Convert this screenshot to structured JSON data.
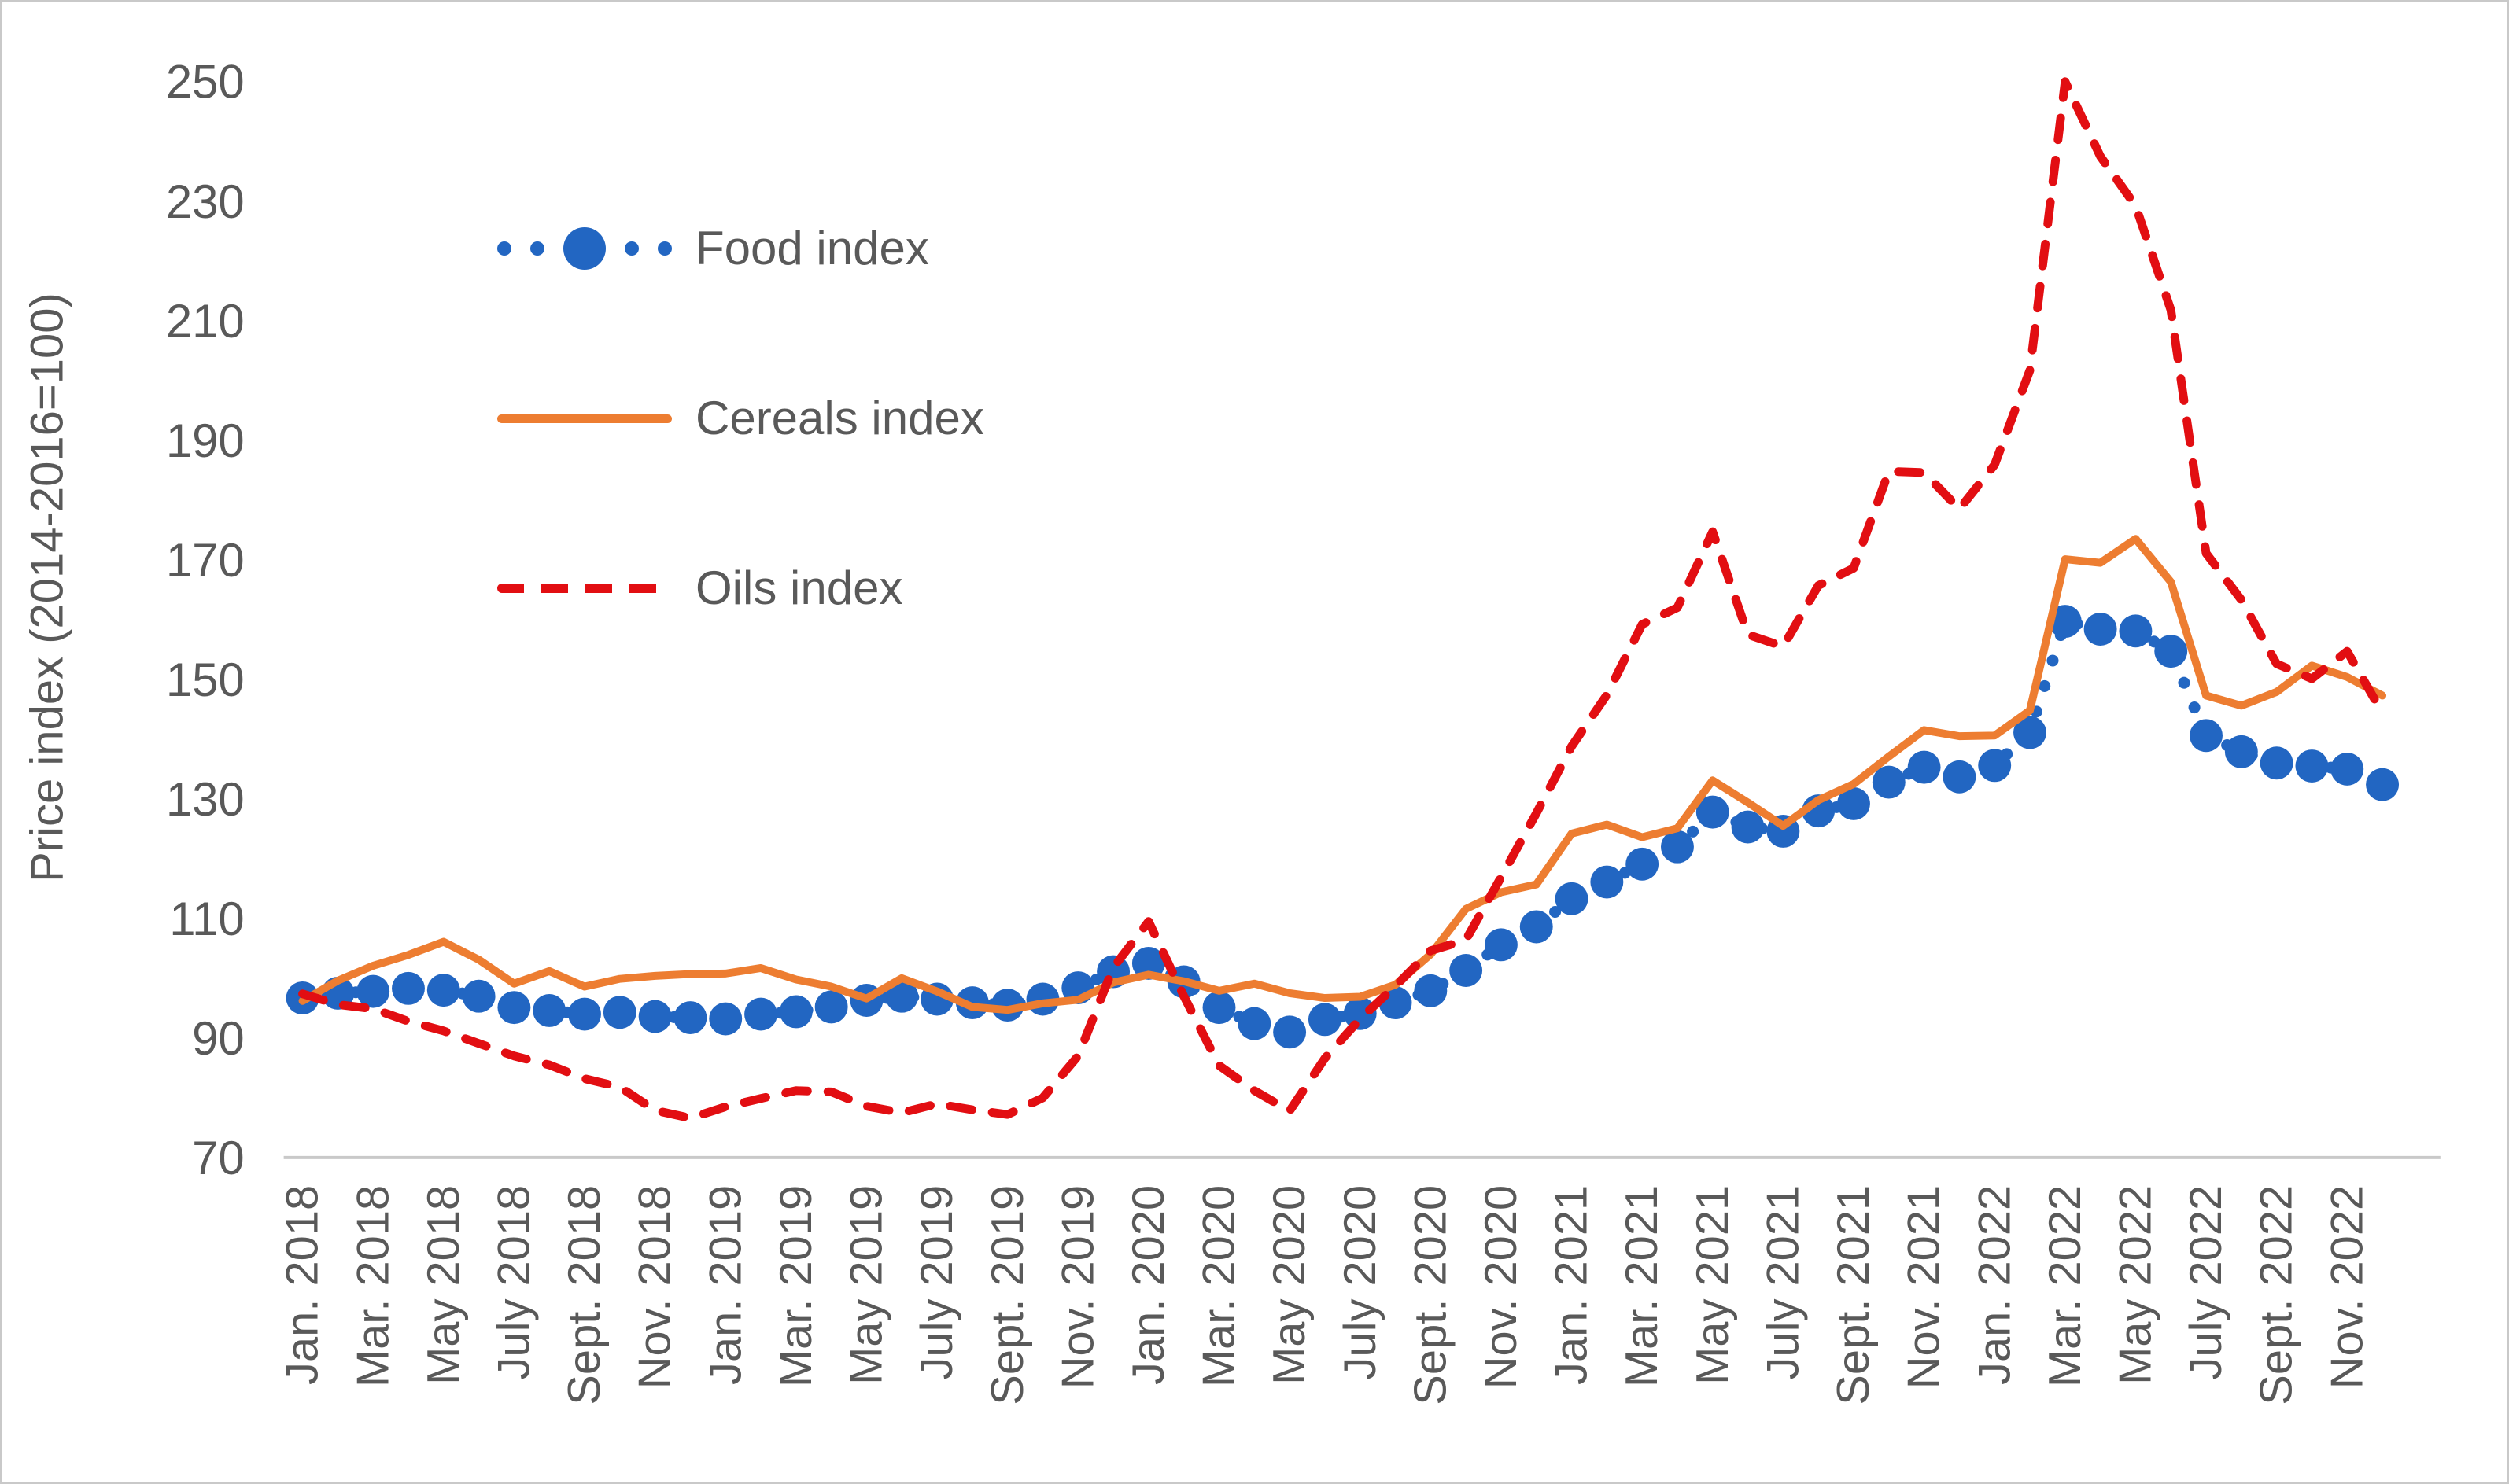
{
  "figure": {
    "background": "#FFFFFF",
    "border_color": "#C9C9C9"
  },
  "colors": {
    "food": "#2266C2",
    "cereals": "#ED7D31",
    "oils": "#E20E12",
    "axis_line": "#C9C9C9",
    "tick_text": "#595959",
    "legend_text": "#595959",
    "axis_title_text": "#595959"
  },
  "legend": {
    "position": "top-left",
    "items": [
      {
        "label": "Food index",
        "marker": "blue-dotted-line-with-circle-marker"
      },
      {
        "label": "Cereals index",
        "marker": "orange-solid-line"
      },
      {
        "label": "Oils index",
        "marker": "red-dashed-line"
      }
    ]
  },
  "chart_data": {
    "type": "line",
    "title": "",
    "xlabel": "",
    "ylabel": "Price index (2014-2016=100)",
    "ylim": [
      70,
      250
    ],
    "y_ticks": [
      250,
      230,
      210,
      190,
      170,
      150,
      130,
      110,
      90,
      70
    ],
    "grid": false,
    "legend_position": "top-left",
    "x_frequency": "monthly",
    "x_start": "Jan. 2018",
    "x_end": "Dec. 2022",
    "x_tick_labels": [
      "Jan. 2018",
      "Mar. 2018",
      "May 2018",
      "July 2018",
      "Sept. 2018",
      "Nov. 2018",
      "Jan. 2019",
      "Mar. 2019",
      "May 2019",
      "July 2019",
      "Sept. 2019",
      "Nov. 2019",
      "Jan. 2020",
      "Mar. 2020",
      "May 2020",
      "July 2020",
      "Sept. 2020",
      "Nov. 2020",
      "Jan. 2021",
      "Mar. 2021",
      "May 2021",
      "July 2021",
      "Sept. 2021",
      "Nov. 2021",
      "Jan. 2022",
      "Mar. 2022",
      "May 2022",
      "July 2022",
      "Sept. 2022",
      "Nov. 2022"
    ],
    "series": [
      {
        "name": "Food index",
        "style": "dots",
        "color": "#2266C2",
        "values": [
          96.7,
          97.5,
          97.8,
          98.3,
          98.0,
          97.0,
          95.1,
          94.6,
          94.0,
          94.3,
          93.6,
          93.4,
          93.2,
          94.0,
          94.4,
          95.2,
          96.3,
          97.0,
          96.5,
          95.9,
          95.5,
          96.5,
          98.4,
          101.1,
          102.5,
          99.4,
          95.1,
          92.4,
          91.0,
          93.1,
          94.1,
          95.9,
          97.9,
          101.3,
          105.6,
          108.6,
          113.3,
          116.1,
          119.1,
          122.0,
          127.8,
          125.3,
          124.6,
          128.0,
          129.2,
          132.8,
          135.3,
          133.7,
          135.6,
          141.1,
          159.7,
          158.4,
          158.1,
          154.7,
          140.6,
          137.9,
          136.0,
          135.5,
          135.0,
          132.4
        ]
      },
      {
        "name": "Cereals index",
        "style": "solid",
        "color": "#ED7D31",
        "values": [
          96.2,
          99.6,
          102.1,
          103.9,
          106.1,
          103.1,
          99.1,
          101.2,
          98.6,
          99.9,
          100.4,
          100.7,
          100.8,
          101.7,
          99.8,
          98.6,
          96.6,
          100.0,
          97.8,
          95.2,
          94.7,
          95.8,
          96.4,
          99.3,
          100.6,
          99.5,
          97.9,
          99.1,
          97.5,
          96.7,
          96.9,
          98.9,
          104.0,
          111.6,
          114.4,
          115.7,
          124.2,
          125.7,
          123.6,
          125.1,
          133.1,
          129.4,
          125.5,
          129.8,
          132.5,
          137.1,
          141.5,
          140.5,
          140.6,
          144.8,
          170.1,
          169.5,
          173.5,
          166.3,
          147.3,
          145.6,
          147.9,
          152.3,
          150.4,
          147.3
        ]
      },
      {
        "name": "Oils index",
        "style": "dashed",
        "color": "#E20E12",
        "values": [
          97.4,
          95.6,
          94.9,
          92.8,
          91.2,
          89.1,
          87.0,
          85.5,
          83.2,
          81.8,
          77.9,
          76.6,
          78.5,
          79.9,
          81.2,
          81.0,
          78.6,
          77.5,
          79.0,
          78.0,
          77.2,
          80.0,
          87.0,
          101.8,
          109.5,
          97.0,
          85.4,
          81.2,
          77.8,
          86.6,
          93.2,
          98.7,
          104.6,
          106.4,
          116.9,
          127.6,
          138.8,
          147.4,
          159.2,
          162.0,
          174.7,
          157.5,
          155.5,
          165.7,
          168.6,
          184.8,
          184.6,
          178.5,
          185.9,
          201.7,
          250.0,
          237.5,
          229.2,
          211.8,
          171.1,
          163.3,
          152.6,
          150.1,
          154.7,
          144.4
        ]
      }
    ]
  }
}
